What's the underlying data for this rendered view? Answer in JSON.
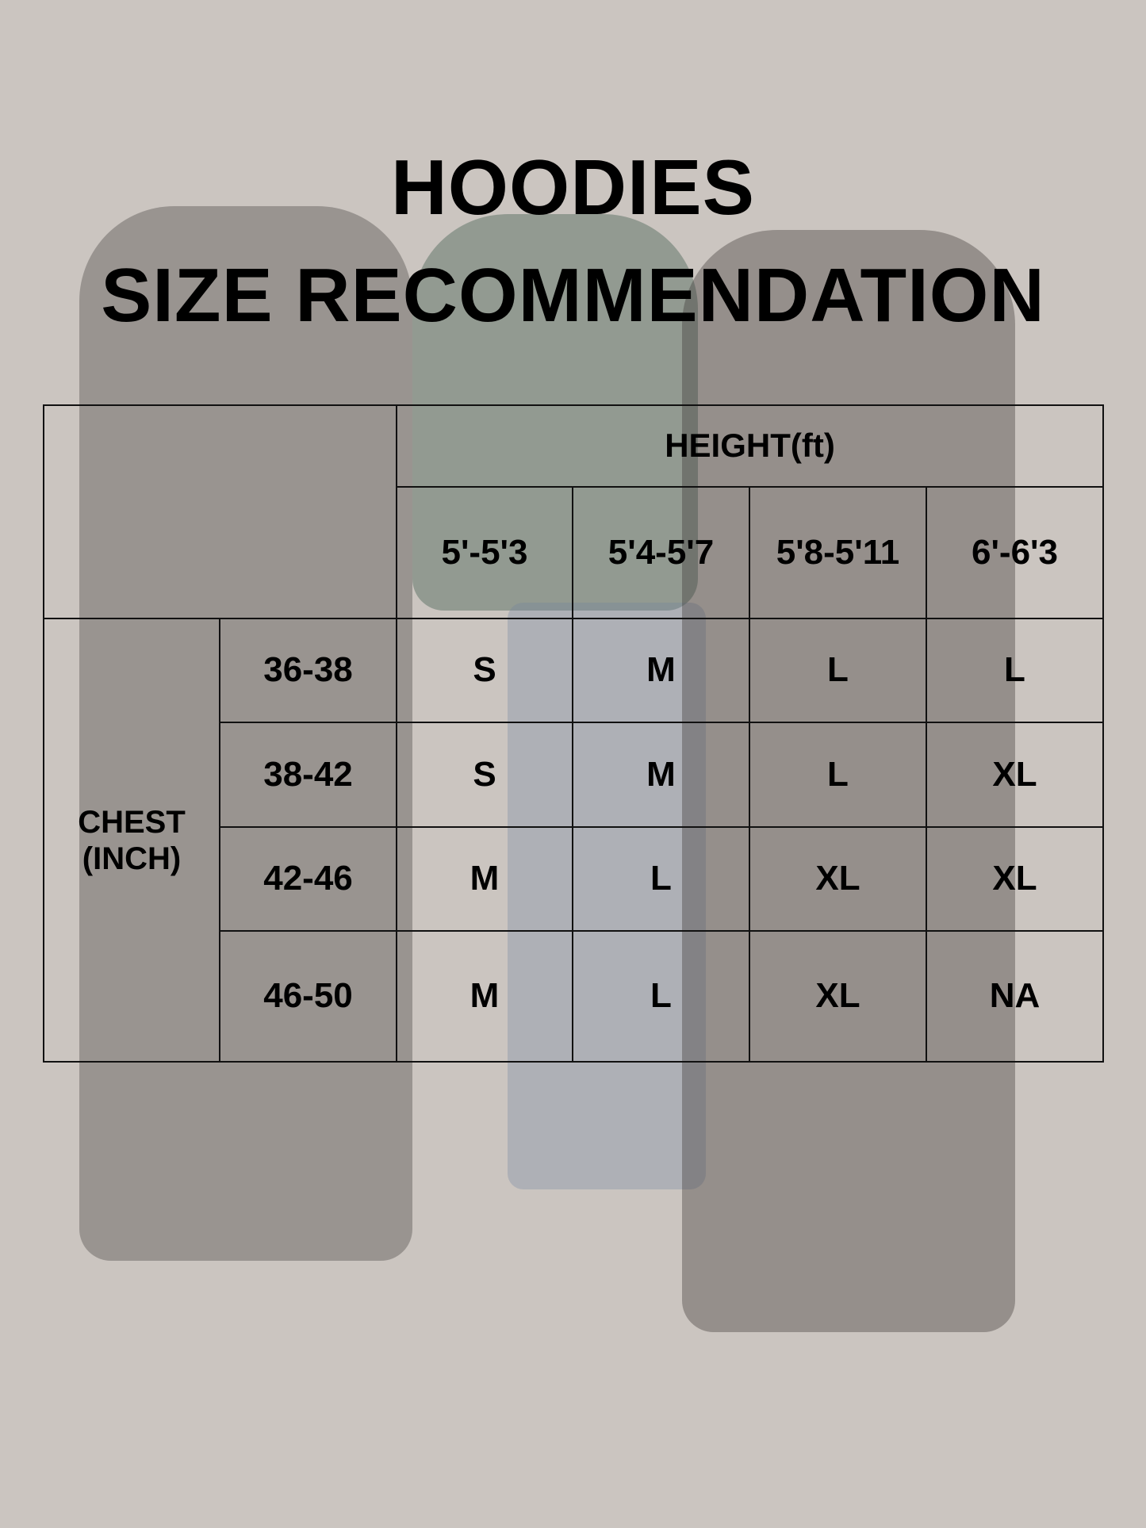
{
  "title": {
    "line1": "HOODIES",
    "line2": "SIZE RECOMMENDATION"
  },
  "table": {
    "height_header": "HEIGHT(ft)",
    "chest_header_line1": "CHEST",
    "chest_header_line2": "(INCH)",
    "height_ranges": [
      "5'-5'3",
      "5'4-5'7",
      "5'8-5'11",
      "6'-6'3"
    ],
    "rows": [
      {
        "chest": "36-38",
        "sizes": [
          "S",
          "M",
          "L",
          "L"
        ]
      },
      {
        "chest": "38-42",
        "sizes": [
          "S",
          "M",
          "L",
          "XL"
        ]
      },
      {
        "chest": "42-46",
        "sizes": [
          "M",
          "L",
          "XL",
          "XL"
        ]
      },
      {
        "chest": "46-50",
        "sizes": [
          "M",
          "L",
          "XL",
          "NA"
        ]
      }
    ]
  },
  "colors": {
    "background": "#cbc5c0",
    "text": "#000000",
    "grid": "#111111"
  }
}
